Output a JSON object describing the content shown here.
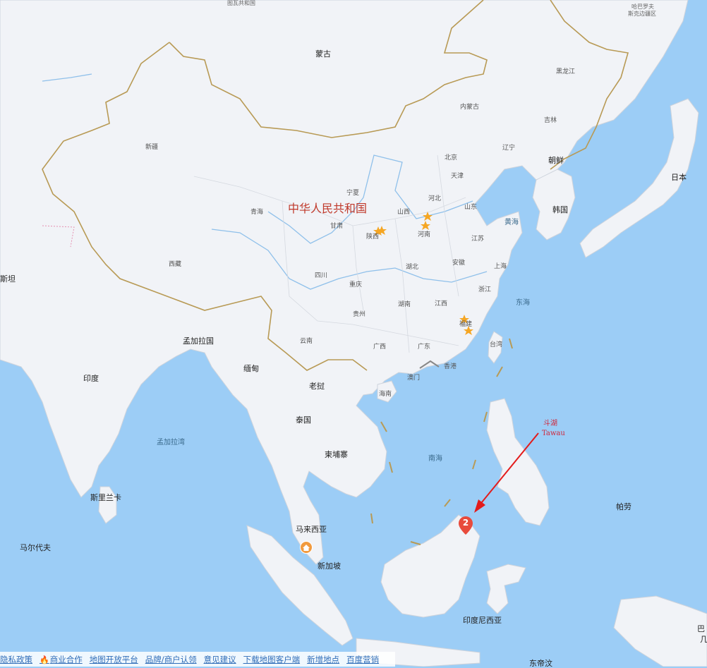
{
  "map": {
    "labels": {
      "mongolia": "蒙古",
      "china_big": "中华人民共和国",
      "heilongjiang": "黑龙江",
      "jilin": "吉林",
      "liaoning": "辽宁",
      "nei_menggu": "内蒙古",
      "xinjiang": "新疆",
      "xizang": "西藏",
      "qinghai": "青海",
      "gansu": "甘肃",
      "ningxia": "宁夏",
      "shaanxi": "陕西",
      "shanxi": "山西",
      "hebei": "河北",
      "beijing": "北京",
      "tianjin": "天津",
      "shandong": "山东",
      "henan": "河南",
      "jiangsu": "江苏",
      "anhui": "安徽",
      "shanghai": "上海",
      "hubei": "湖北",
      "sichuan": "四川",
      "chongqing": "重庆",
      "zhejiang": "浙江",
      "hunan": "湖南",
      "jiangxi": "江西",
      "fujian": "福建",
      "guizhou": "贵州",
      "yunnan": "云南",
      "guangxi": "广西",
      "guangdong": "广东",
      "taiwan": "台湾",
      "hongkong": "香港",
      "macau": "澳门",
      "hainan": "海南",
      "north_korea": "朝鲜",
      "south_korea": "韩国",
      "japan": "日本",
      "yellow_sea": "黄海",
      "east_sea": "东海",
      "south_sea": "南海",
      "bangladesh": "孟加拉国",
      "myanmar": "缅甸",
      "laos": "老挝",
      "thailand": "泰国",
      "cambodia": "柬埔寨",
      "india": "印度",
      "bay_of_bengal": "孟加拉湾",
      "sri_lanka": "斯里兰卡",
      "maldives": "马尔代夫",
      "malaysia": "马来西亚",
      "singapore": "新加坡",
      "indonesia": "印度尼西亚",
      "palau": "帕劳",
      "pakistan_partial": "斯坦",
      "khabarovsk_1": "哈巴罗夫",
      "khabarovsk_2": "斯克边疆区",
      "top_partial": "图瓦共和国",
      "east_timor_partial": "东帝汶",
      "right_edge_1": "巴",
      "right_edge_2": "几"
    },
    "marker": {
      "number": "2",
      "color": "#e84b3c"
    },
    "annotation": {
      "cn": "斗湖",
      "en": "Tawau",
      "color": "#d0263a"
    }
  },
  "footer": {
    "links": [
      "隐私政策",
      "商业合作",
      "地图开放平台",
      "品牌/商户认领",
      "意见建议",
      "下载地图客户端",
      "新增地点",
      "百度营销"
    ]
  }
}
